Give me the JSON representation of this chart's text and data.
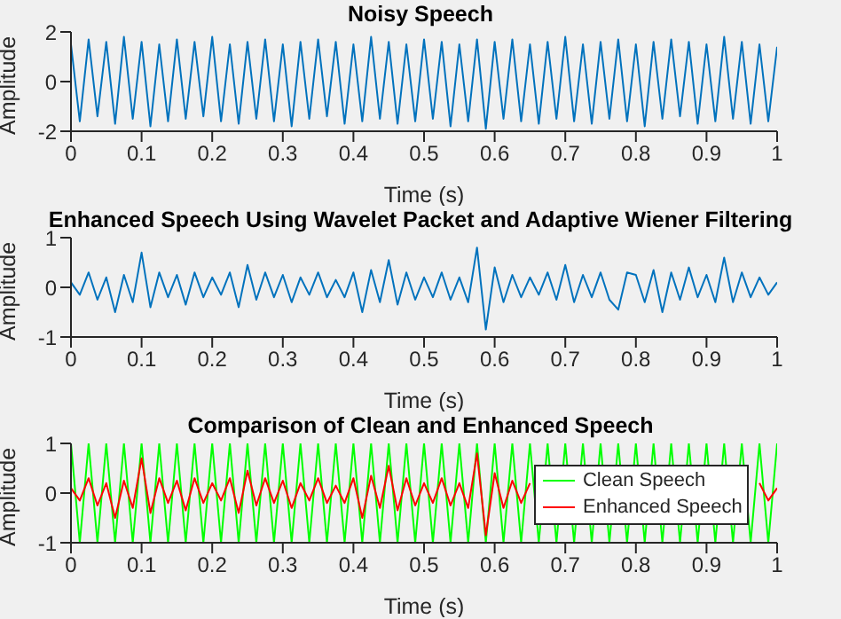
{
  "chart_data": [
    {
      "type": "line",
      "title": "Noisy Speech",
      "xlabel": "Time (s)",
      "ylabel": "Amplitude",
      "xlim": [
        0,
        1
      ],
      "xticks": [
        0,
        0.1,
        0.2,
        0.3,
        0.4,
        0.5,
        0.6,
        0.7,
        0.8,
        0.9,
        1
      ],
      "ylim": [
        -2,
        2
      ],
      "yticks": [
        -2,
        0,
        2
      ],
      "grid": false,
      "legend": false,
      "x": [
        0,
        0.0125,
        0.025,
        0.0375,
        0.05,
        0.0625,
        0.075,
        0.0875,
        0.1,
        0.1125,
        0.125,
        0.1375,
        0.15,
        0.1625,
        0.175,
        0.1875,
        0.2,
        0.2125,
        0.225,
        0.2375,
        0.25,
        0.2625,
        0.275,
        0.2875,
        0.3,
        0.3125,
        0.325,
        0.3375,
        0.35,
        0.3625,
        0.375,
        0.3875,
        0.4,
        0.4125,
        0.425,
        0.4375,
        0.45,
        0.4625,
        0.475,
        0.4875,
        0.5,
        0.5125,
        0.525,
        0.5375,
        0.55,
        0.5625,
        0.575,
        0.5875,
        0.6,
        0.6125,
        0.625,
        0.6375,
        0.65,
        0.6625,
        0.675,
        0.6875,
        0.7,
        0.7125,
        0.725,
        0.7375,
        0.75,
        0.7625,
        0.775,
        0.7875,
        0.8,
        0.8125,
        0.825,
        0.8375,
        0.85,
        0.8625,
        0.875,
        0.8875,
        0.9,
        0.9125,
        0.925,
        0.9375,
        0.95,
        0.9625,
        0.975,
        0.9875,
        1
      ],
      "series": [
        {
          "color": "#0072bd",
          "values": [
            1.5,
            -1.6,
            1.7,
            -1.4,
            1.6,
            -1.7,
            1.8,
            -1.5,
            1.6,
            -1.8,
            1.5,
            -1.6,
            1.7,
            -1.5,
            1.6,
            -1.4,
            1.8,
            -1.6,
            1.5,
            -1.7,
            1.6,
            -1.5,
            1.7,
            -1.6,
            1.5,
            -1.8,
            1.6,
            -1.5,
            1.7,
            -1.4,
            1.6,
            -1.7,
            1.5,
            -1.6,
            1.8,
            -1.5,
            1.6,
            -1.7,
            1.5,
            -1.6,
            1.7,
            -1.5,
            1.6,
            -1.8,
            1.5,
            -1.6,
            1.7,
            -1.9,
            1.6,
            -1.5,
            1.7,
            -1.6,
            1.5,
            -1.7,
            1.6,
            -1.5,
            1.8,
            -1.6,
            1.5,
            -1.7,
            1.6,
            -1.5,
            1.7,
            -1.6,
            1.5,
            -1.8,
            1.6,
            -1.5,
            1.7,
            -1.4,
            1.6,
            -1.7,
            1.5,
            -1.6,
            1.8,
            -1.5,
            1.6,
            -1.7,
            1.5,
            -1.6,
            1.4
          ]
        }
      ]
    },
    {
      "type": "line",
      "title": "Enhanced Speech Using Wavelet Packet and Adaptive Wiener Filtering",
      "xlabel": "Time (s)",
      "ylabel": "Amplitude",
      "xlim": [
        0,
        1
      ],
      "xticks": [
        0,
        0.1,
        0.2,
        0.3,
        0.4,
        0.5,
        0.6,
        0.7,
        0.8,
        0.9,
        1
      ],
      "ylim": [
        -1,
        1
      ],
      "yticks": [
        -1,
        0,
        1
      ],
      "grid": false,
      "legend": false,
      "x": [
        0,
        0.0125,
        0.025,
        0.0375,
        0.05,
        0.0625,
        0.075,
        0.0875,
        0.1,
        0.1125,
        0.125,
        0.1375,
        0.15,
        0.1625,
        0.175,
        0.1875,
        0.2,
        0.2125,
        0.225,
        0.2375,
        0.25,
        0.2625,
        0.275,
        0.2875,
        0.3,
        0.3125,
        0.325,
        0.3375,
        0.35,
        0.3625,
        0.375,
        0.3875,
        0.4,
        0.4125,
        0.425,
        0.4375,
        0.45,
        0.4625,
        0.475,
        0.4875,
        0.5,
        0.5125,
        0.525,
        0.5375,
        0.55,
        0.5625,
        0.575,
        0.5875,
        0.6,
        0.6125,
        0.625,
        0.6375,
        0.65,
        0.6625,
        0.675,
        0.6875,
        0.7,
        0.7125,
        0.725,
        0.7375,
        0.75,
        0.7625,
        0.775,
        0.7875,
        0.8,
        0.8125,
        0.825,
        0.8375,
        0.85,
        0.8625,
        0.875,
        0.8875,
        0.9,
        0.9125,
        0.925,
        0.9375,
        0.95,
        0.9625,
        0.975,
        0.9875,
        1
      ],
      "series": [
        {
          "color": "#0072bd",
          "values": [
            0.1,
            -0.15,
            0.3,
            -0.25,
            0.2,
            -0.5,
            0.25,
            -0.3,
            0.7,
            -0.4,
            0.3,
            -0.2,
            0.25,
            -0.35,
            0.3,
            -0.2,
            0.2,
            -0.15,
            0.3,
            -0.4,
            0.45,
            -0.25,
            0.3,
            -0.2,
            0.25,
            -0.3,
            0.2,
            -0.15,
            0.3,
            -0.2,
            0.15,
            -0.2,
            0.3,
            -0.5,
            0.35,
            -0.3,
            0.55,
            -0.35,
            0.3,
            -0.25,
            0.2,
            -0.2,
            0.3,
            -0.25,
            0.2,
            -0.3,
            0.8,
            -0.85,
            0.4,
            -0.3,
            0.25,
            -0.2,
            0.2,
            -0.15,
            0.3,
            -0.25,
            0.45,
            -0.3,
            0.25,
            -0.2,
            0.3,
            -0.25,
            -0.45,
            0.3,
            0.25,
            -0.3,
            0.35,
            -0.5,
            0.3,
            -0.25,
            0.4,
            -0.2,
            0.25,
            -0.3,
            0.6,
            -0.3,
            0.3,
            -0.2,
            0.2,
            -0.15,
            0.1
          ]
        }
      ]
    },
    {
      "type": "line",
      "title": "Comparison of Clean and Enhanced Speech",
      "xlabel": "Time (s)",
      "ylabel": "Amplitude",
      "xlim": [
        0,
        1
      ],
      "xticks": [
        0,
        0.1,
        0.2,
        0.3,
        0.4,
        0.5,
        0.6,
        0.7,
        0.8,
        0.9,
        1
      ],
      "ylim": [
        -1,
        1
      ],
      "yticks": [
        -1,
        0,
        1
      ],
      "grid": false,
      "legend": "right",
      "x": [
        0,
        0.0125,
        0.025,
        0.0375,
        0.05,
        0.0625,
        0.075,
        0.0875,
        0.1,
        0.1125,
        0.125,
        0.1375,
        0.15,
        0.1625,
        0.175,
        0.1875,
        0.2,
        0.2125,
        0.225,
        0.2375,
        0.25,
        0.2625,
        0.275,
        0.2875,
        0.3,
        0.3125,
        0.325,
        0.3375,
        0.35,
        0.3625,
        0.375,
        0.3875,
        0.4,
        0.4125,
        0.425,
        0.4375,
        0.45,
        0.4625,
        0.475,
        0.4875,
        0.5,
        0.5125,
        0.525,
        0.5375,
        0.55,
        0.5625,
        0.575,
        0.5875,
        0.6,
        0.6125,
        0.625,
        0.6375,
        0.65,
        0.6625,
        0.675,
        0.6875,
        0.7,
        0.7125,
        0.725,
        0.7375,
        0.75,
        0.7625,
        0.775,
        0.7875,
        0.8,
        0.8125,
        0.825,
        0.8375,
        0.85,
        0.8625,
        0.875,
        0.8875,
        0.9,
        0.9125,
        0.925,
        0.9375,
        0.95,
        0.9625,
        0.975,
        0.9875,
        1
      ],
      "series": [
        {
          "name": "Clean Speech",
          "color": "#00ff00",
          "values": [
            1,
            -1,
            1,
            -1,
            1,
            -1,
            1,
            -1,
            1,
            -1,
            1,
            -1,
            1,
            -1,
            1,
            -1,
            1,
            -1,
            1,
            -1,
            1,
            -1,
            1,
            -1,
            1,
            -1,
            1,
            -1,
            1,
            -1,
            1,
            -1,
            1,
            -1,
            1,
            -1,
            1,
            -1,
            1,
            -1,
            1,
            -1,
            1,
            -1,
            1,
            -1,
            1,
            -1,
            1,
            -1,
            1,
            -1,
            1,
            -1,
            1,
            -1,
            1,
            -1,
            1,
            -1,
            1,
            -1,
            1,
            -1,
            1,
            -1,
            1,
            -1,
            1,
            -1,
            1,
            -1,
            1,
            -1,
            1,
            -1,
            1,
            -1,
            1,
            -1,
            1
          ]
        },
        {
          "name": "Enhanced Speech",
          "color": "#ff0000",
          "values": [
            0.1,
            -0.15,
            0.3,
            -0.25,
            0.2,
            -0.5,
            0.25,
            -0.3,
            0.7,
            -0.4,
            0.3,
            -0.2,
            0.25,
            -0.35,
            0.3,
            -0.2,
            0.2,
            -0.15,
            0.3,
            -0.4,
            0.45,
            -0.25,
            0.3,
            -0.2,
            0.25,
            -0.3,
            0.2,
            -0.15,
            0.3,
            -0.2,
            0.15,
            -0.2,
            0.3,
            -0.5,
            0.35,
            -0.3,
            0.55,
            -0.35,
            0.3,
            -0.25,
            0.2,
            -0.2,
            0.3,
            -0.25,
            0.2,
            -0.3,
            0.8,
            -0.85,
            0.4,
            -0.3,
            0.25,
            -0.2,
            0.2,
            null,
            null,
            null,
            null,
            null,
            null,
            null,
            null,
            null,
            null,
            null,
            null,
            null,
            null,
            null,
            null,
            null,
            null,
            null,
            null,
            null,
            null,
            null,
            null,
            null,
            0.2,
            -0.15,
            0.1
          ]
        }
      ]
    }
  ]
}
